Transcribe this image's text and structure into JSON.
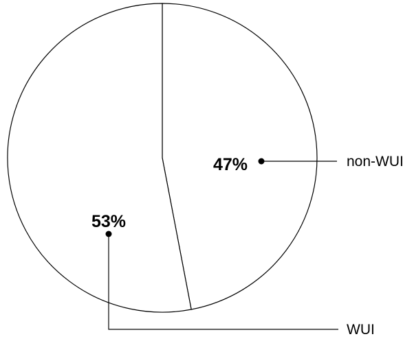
{
  "chart_data": {
    "type": "pie",
    "start_angle_deg": 0,
    "direction": "clockwise",
    "slices": [
      {
        "label": "non-WUI",
        "value": 47,
        "value_label": "47%",
        "color": "#ffffff"
      },
      {
        "label": "WUI",
        "value": 53,
        "value_label": "53%",
        "color": "#ffffff"
      }
    ],
    "stroke_color": "#000000",
    "legend": "none"
  }
}
